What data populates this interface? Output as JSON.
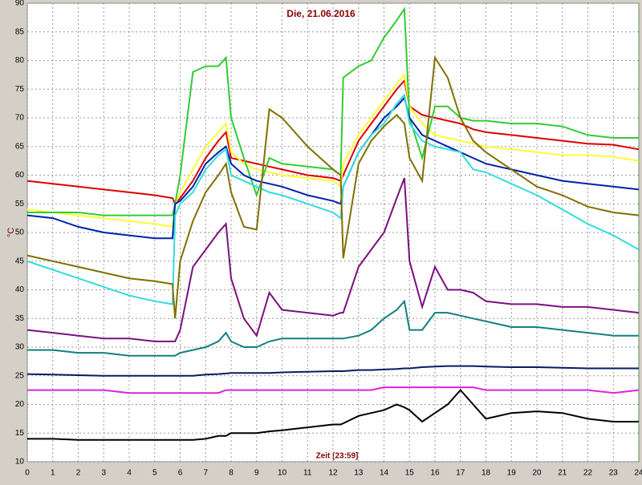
{
  "chart_data": {
    "type": "line",
    "title": "Die, 21.06.2016",
    "y_label": "°C",
    "x_label": "Zeit [23:59]",
    "x": [
      0,
      1,
      2,
      3,
      4,
      5,
      5.7,
      5.8,
      6,
      6.5,
      7,
      7.5,
      7.8,
      8,
      8.5,
      9,
      9.5,
      10,
      11,
      12,
      12.3,
      12.4,
      13,
      13.5,
      14,
      14.5,
      14.8,
      15,
      15.5,
      16,
      16.5,
      17,
      17.5,
      18,
      19,
      20,
      21,
      22,
      23,
      24
    ],
    "series": [
      {
        "color": "#dd0000",
        "values": [
          59,
          58.5,
          58,
          57.5,
          57,
          56.5,
          56,
          55,
          56,
          59,
          63,
          66,
          67.5,
          63,
          62.5,
          62,
          61.5,
          61,
          60,
          59.5,
          59,
          60,
          66,
          69,
          72,
          75,
          76.5,
          72,
          70.5,
          70,
          69.5,
          69,
          68,
          67.5,
          67,
          66.5,
          66,
          65.5,
          65.3,
          64.5
        ]
      },
      {
        "color": "#ffff33",
        "values": [
          54,
          53.5,
          53,
          52.5,
          52,
          51.5,
          51,
          55,
          57,
          61,
          65,
          67.5,
          69,
          64,
          62,
          61,
          60.5,
          60,
          59.5,
          59,
          58,
          62,
          67,
          70,
          73,
          76,
          77.5,
          72,
          69,
          67,
          66.5,
          66,
          65.5,
          65,
          64.5,
          64,
          63.5,
          63.5,
          63.2,
          62.5
        ]
      },
      {
        "color": "#33cc33",
        "values": [
          53.5,
          53.5,
          53.5,
          53,
          53,
          53,
          53,
          55,
          60,
          78,
          79,
          79,
          80.5,
          70,
          63,
          56.5,
          63,
          62,
          61.5,
          61,
          60,
          77,
          79,
          80,
          84,
          87,
          89,
          70,
          63,
          72,
          72,
          70,
          69.5,
          69.5,
          69,
          69,
          68.5,
          67,
          66.5,
          66.5
        ]
      },
      {
        "color": "#0022aa",
        "values": [
          53,
          52.5,
          51,
          50,
          49.5,
          49,
          49,
          55,
          55.5,
          58,
          62,
          64,
          65,
          62,
          60,
          59,
          58.5,
          58,
          56.5,
          55.5,
          55,
          58,
          64,
          67,
          70,
          72,
          73.5,
          70,
          67,
          66,
          65,
          64,
          63,
          62,
          61,
          60,
          59,
          58.5,
          58,
          57.5
        ]
      },
      {
        "color": "#33dddd",
        "values": [
          45,
          43.5,
          42,
          40.5,
          39,
          38,
          37.5,
          53,
          55,
          57,
          61,
          63.5,
          64.5,
          60,
          59,
          58,
          57,
          56.5,
          55,
          53.5,
          52.5,
          58,
          64,
          67,
          69,
          72.5,
          74,
          69,
          66,
          65,
          64.5,
          64,
          61,
          60.5,
          58.5,
          56.5,
          54,
          51.5,
          49.5,
          47
        ]
      },
      {
        "color": "#807000",
        "values": [
          46,
          45,
          44,
          43,
          42,
          41.5,
          41,
          35,
          45,
          52,
          57,
          60,
          62,
          57,
          51,
          50.5,
          71.5,
          70,
          65,
          61,
          60,
          45.5,
          62,
          66,
          68.5,
          70.5,
          69,
          63,
          59,
          80.5,
          77,
          70,
          66,
          64,
          61,
          58,
          56.5,
          54.5,
          53.5,
          53
        ]
      },
      {
        "color": "#7a1080",
        "values": [
          33,
          32.5,
          32,
          31.5,
          31.5,
          31,
          31,
          31,
          33,
          44,
          47,
          50,
          51.5,
          42,
          35,
          32,
          39.5,
          36.5,
          36,
          35.5,
          36,
          36,
          44,
          47,
          50,
          56,
          59.5,
          45,
          37,
          44,
          40,
          40,
          39.5,
          38,
          37.5,
          37.5,
          37,
          37,
          36.5,
          36
        ]
      },
      {
        "color": "#118080",
        "values": [
          29.5,
          29.5,
          29,
          29,
          28.5,
          28.5,
          28.5,
          28.5,
          29,
          29.5,
          30,
          31,
          32.5,
          31,
          30,
          30,
          31,
          31.5,
          31.5,
          31.5,
          31.5,
          31.5,
          32,
          33,
          35,
          36.5,
          38,
          33,
          33,
          36,
          36,
          35.5,
          35,
          34.5,
          33.5,
          33.5,
          33,
          32.5,
          32,
          32
        ]
      },
      {
        "color": "#0a1a60",
        "values": [
          25.3,
          25.2,
          25.1,
          25,
          25,
          25,
          25,
          25,
          25,
          25,
          25.2,
          25.3,
          25.4,
          25.5,
          25.5,
          25.5,
          25.5,
          25.6,
          25.7,
          25.8,
          25.8,
          25.8,
          26,
          26,
          26.1,
          26.2,
          26.3,
          26.3,
          26.5,
          26.6,
          26.7,
          26.7,
          26.7,
          26.6,
          26.5,
          26.5,
          26.4,
          26.3,
          26.3,
          26.3
        ]
      },
      {
        "color": "#dd22dd",
        "values": [
          22.5,
          22.5,
          22.5,
          22.5,
          22,
          22,
          22,
          22,
          22,
          22,
          22,
          22,
          22.5,
          22.5,
          22.5,
          22.5,
          22.5,
          22.5,
          22.5,
          22.5,
          22.5,
          22.5,
          22.5,
          22.5,
          23,
          23,
          23,
          23,
          23,
          23,
          23,
          23,
          23,
          22.5,
          22.5,
          22.5,
          22.5,
          22.5,
          22,
          22.5
        ]
      },
      {
        "color": "#000000",
        "values": [
          14,
          14,
          13.8,
          13.8,
          13.8,
          13.8,
          13.8,
          13.8,
          13.8,
          13.8,
          14,
          14.5,
          14.5,
          15,
          15,
          15,
          15.3,
          15.5,
          16,
          16.5,
          16.5,
          16.7,
          18,
          18.5,
          19,
          20,
          19.5,
          19,
          17,
          18.5,
          20,
          22.5,
          20,
          17.5,
          18.5,
          18.8,
          18.5,
          17.5,
          17,
          17
        ]
      }
    ],
    "xlim": [
      0,
      24
    ],
    "ylim": [
      10,
      90
    ],
    "xticks": [
      0,
      1,
      2,
      3,
      4,
      5,
      6,
      7,
      8,
      9,
      10,
      11,
      12,
      13,
      14,
      15,
      16,
      17,
      18,
      19,
      20,
      21,
      22,
      23,
      24
    ],
    "yticks": [
      10,
      15,
      20,
      25,
      30,
      35,
      40,
      45,
      50,
      55,
      60,
      65,
      70,
      75,
      80,
      85,
      90
    ],
    "grid": true
  }
}
